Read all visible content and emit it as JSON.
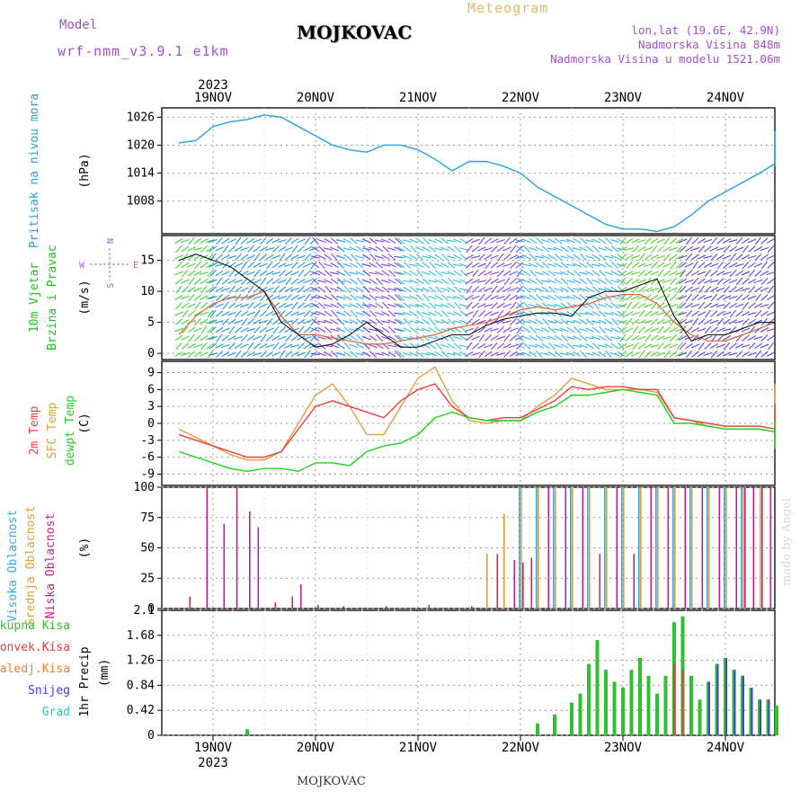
{
  "header": {
    "model_label": "Model",
    "model_name": "wrf-nmm_v3.9.1 e1km",
    "title": "MOJKOVAC",
    "subtitle": "Meteogram",
    "coords": "lon,lat (19.6E, 42.9N)",
    "elevation": "Nadmorska Visina 848m",
    "model_elevation": "Nadmorska Visina u modelu 1521.06m"
  },
  "footer_label": "MOJKOVAC",
  "credit": "made by Angel",
  "axis": {
    "year_top": "2023",
    "year_bottom": "2023",
    "dates": [
      "19NOV",
      "20NOV",
      "21NOV",
      "22NOV",
      "23NOV",
      "24NOV"
    ],
    "hours_per_day": 24
  },
  "colors": {
    "pressure": "#2aa0e0",
    "wind_green": "#20c020",
    "temp_red": "#e84040",
    "temp_orange": "#e0a040",
    "dewpoint_green": "#20d020",
    "cloud_high": "#30a8f0",
    "cloud_mid": "#e0a030",
    "cloud_low": "#c0208a",
    "rain_total": "#30c030",
    "rain_conv": "#e04040",
    "rain_frozen": "#f08030",
    "snow": "#4040e0",
    "graupel": "#30c0c0"
  },
  "chart_data": [
    {
      "type": "line",
      "panel": "pressure",
      "ylabel": "Pritisak na nivou mora",
      "unit": "(hPa)",
      "yticks": [
        1008,
        1014,
        1020,
        1026
      ],
      "ylim": [
        1001,
        1028
      ],
      "x_start_hour": -8,
      "series": [
        {
          "name": "",
          "x": [
            -8,
            -4,
            0,
            4,
            8,
            12,
            16,
            20,
            24,
            28,
            32,
            36,
            40,
            44,
            48,
            52,
            56,
            60,
            64,
            68,
            72,
            76,
            80,
            84,
            88,
            92,
            96,
            100,
            104,
            108,
            112,
            116,
            120,
            124,
            128,
            132,
            136,
            140,
            144,
            148,
            152,
            156,
            160,
            164,
            168,
            172,
            176,
            180,
            184,
            188,
            192
          ],
          "values": [
            1020.5,
            1021,
            1024,
            1025,
            1025.5,
            1026.5,
            1026,
            1024,
            1022,
            1020,
            1019,
            1018.5,
            1020,
            1020,
            1019,
            1017,
            1014.5,
            1016.5,
            1016.5,
            1015.5,
            1014,
            1011,
            1009,
            1007,
            1005,
            1003,
            1002,
            1002,
            1001.5,
            1002.5,
            1005,
            1008,
            1010,
            1012,
            1014,
            1016,
            1020,
            1022.5,
            1022.5,
            1022,
            1023,
            1021,
            1021,
            1021,
            1021,
            1020,
            1020,
            1019.5,
            1019,
            1017,
            1015.5
          ]
        }
      ]
    },
    {
      "type": "line",
      "panel": "wind",
      "ylabel": "10m Vjetar",
      "ylabel2": "Brzina i Pravac",
      "unit": "(m/s)",
      "compass": [
        "N",
        "W",
        "E",
        "S"
      ],
      "yticks": [
        0,
        5,
        10,
        15
      ],
      "ylim": [
        -1,
        19
      ],
      "series": [
        {
          "name": "",
          "x": [
            -8,
            -4,
            0,
            4,
            8,
            12,
            16,
            20,
            24,
            28,
            32,
            36,
            40,
            44,
            48,
            52,
            56,
            60,
            64,
            68,
            72,
            76,
            80,
            84,
            88,
            92,
            96,
            100,
            104,
            108,
            112,
            116,
            120,
            124,
            128,
            132,
            136,
            140,
            144,
            148,
            152,
            156,
            160,
            164,
            168,
            172,
            176,
            180,
            184,
            188,
            192
          ],
          "values": [
            3,
            6,
            8,
            9,
            9,
            10,
            6,
            3,
            3,
            2.5,
            2,
            1.5,
            1.5,
            2,
            2.5,
            3,
            4,
            4.5,
            5,
            6,
            7,
            7.5,
            7,
            7.5,
            8,
            9,
            9.5,
            9.5,
            8,
            5,
            3,
            2,
            2,
            3,
            4,
            5,
            5.5,
            6,
            6.5,
            6,
            5,
            4,
            3,
            3,
            3,
            3,
            3,
            3.5,
            4,
            4,
            3.5
          ]
        },
        {
          "name": "",
          "x": [
            -8,
            -4,
            0,
            4,
            8,
            12,
            16,
            20,
            24,
            28,
            32,
            36,
            40,
            44,
            48,
            52,
            56,
            60,
            64,
            68,
            72,
            76,
            80,
            84,
            88,
            92,
            96,
            100,
            104,
            108,
            112,
            116,
            120,
            124,
            128,
            132,
            136,
            140,
            144,
            148,
            152,
            156,
            160,
            164,
            168,
            172,
            176,
            180,
            184,
            188,
            192
          ],
          "values": [
            15,
            16,
            15,
            14,
            12,
            10,
            5,
            3,
            1,
            1.5,
            3,
            5,
            3,
            1,
            1,
            2,
            3,
            3,
            4.5,
            5.5,
            6,
            6.5,
            6.5,
            6,
            9,
            10,
            10,
            11,
            12,
            6,
            2,
            3,
            3,
            4,
            5,
            5,
            6,
            6.5,
            7,
            6,
            5,
            4,
            3,
            2,
            3,
            3,
            3,
            3,
            3.5,
            4,
            3.5
          ]
        }
      ]
    },
    {
      "type": "line",
      "panel": "temperature",
      "ylabel_parts": [
        "2m Temp",
        "SFC Temp",
        "dewpt Temp"
      ],
      "unit": "(C)",
      "yticks": [
        -9,
        -6,
        -3,
        0,
        3,
        6,
        9
      ],
      "ylim": [
        -11,
        11
      ],
      "series": [
        {
          "name": "2m Temp",
          "x": [
            -8,
            -4,
            0,
            4,
            8,
            12,
            16,
            20,
            24,
            28,
            32,
            36,
            40,
            44,
            48,
            52,
            56,
            60,
            64,
            68,
            72,
            76,
            80,
            84,
            88,
            92,
            96,
            100,
            104,
            108,
            112,
            116,
            120,
            124,
            128,
            132,
            136,
            140,
            144,
            148,
            152,
            156,
            160,
            164,
            168,
            172,
            176,
            180,
            184,
            188,
            192
          ],
          "values": [
            -2,
            -3,
            -4,
            -5,
            -6,
            -6,
            -5,
            -1,
            3,
            4,
            3,
            2,
            1,
            4,
            6,
            7,
            3,
            1,
            0.5,
            1,
            1,
            2.5,
            4,
            6.5,
            6,
            6.5,
            6.5,
            6,
            6,
            1,
            0.5,
            0,
            -0.5,
            -0.5,
            -0.5,
            -1,
            -1.5,
            -2.5,
            -2.5,
            -1.5,
            1,
            2,
            1,
            -1,
            -1.5,
            -1.5,
            -1.5,
            -2,
            -2,
            2,
            3.5
          ]
        },
        {
          "name": "SFC Temp",
          "x": [
            -8,
            -4,
            0,
            4,
            8,
            12,
            16,
            20,
            24,
            28,
            32,
            36,
            40,
            44,
            48,
            52,
            56,
            60,
            64,
            68,
            72,
            76,
            80,
            84,
            88,
            92,
            96,
            100,
            104,
            108,
            112,
            116,
            120,
            124,
            128,
            132,
            136,
            140,
            144,
            148,
            152,
            156,
            160,
            164,
            168,
            172,
            176,
            180,
            184,
            188,
            192
          ],
          "values": [
            -1,
            -2.5,
            -4,
            -5.5,
            -6.5,
            -6.5,
            -5,
            0,
            5,
            7,
            3,
            -2,
            -2,
            3,
            8,
            10,
            4,
            0.5,
            0,
            0.5,
            0.5,
            3,
            5,
            8,
            7,
            6,
            6,
            6,
            5.5,
            1,
            0.5,
            -0.5,
            -1,
            -1,
            -1,
            -1.5,
            -2,
            -3,
            -3,
            -1,
            5,
            7,
            3,
            -1,
            -2,
            -2,
            -2,
            -2,
            -2,
            5,
            6
          ]
        },
        {
          "name": "dewpt Temp",
          "x": [
            -8,
            -4,
            0,
            4,
            8,
            12,
            16,
            20,
            24,
            28,
            32,
            36,
            40,
            44,
            48,
            52,
            56,
            60,
            64,
            68,
            72,
            76,
            80,
            84,
            88,
            92,
            96,
            100,
            104,
            108,
            112,
            116,
            120,
            124,
            128,
            132,
            136,
            140,
            144,
            148,
            152,
            156,
            160,
            164,
            168,
            172,
            176,
            180,
            184,
            188,
            192
          ],
          "values": [
            -5,
            -6,
            -7,
            -8,
            -8.5,
            -8,
            -8,
            -8.5,
            -7,
            -7,
            -7.5,
            -5,
            -4,
            -3.5,
            -2,
            1,
            2,
            1,
            0.5,
            0.5,
            0.5,
            2,
            3,
            5,
            5,
            5.5,
            6,
            5.5,
            5,
            0,
            0,
            -0.5,
            -1,
            -1,
            -1,
            -1.5,
            -2,
            -3,
            -3,
            -2,
            0,
            0.5,
            0,
            -1,
            -1.5,
            -2,
            -2,
            -2.5,
            -2.5,
            -2,
            -4.5
          ]
        }
      ]
    },
    {
      "type": "bar",
      "panel": "clouds",
      "ylabel_parts": [
        "Visoka Oblacnost",
        "Srednja Oblacnost",
        "Niska Oblacnost"
      ],
      "unit": "(%)",
      "yticks": [
        0,
        25,
        50,
        75,
        100
      ],
      "ylim": [
        0,
        100
      ],
      "low_hours": [
        -6,
        -2,
        2,
        5,
        8,
        10,
        14,
        18,
        20,
        24,
        30,
        40,
        50,
        60,
        66,
        70,
        72,
        74,
        78,
        82,
        86,
        90,
        94,
        98,
        102,
        106,
        110,
        114,
        118,
        122,
        124,
        126,
        128,
        130,
        132,
        134,
        136,
        138,
        140,
        144,
        148,
        152,
        156,
        160,
        164,
        168,
        170,
        172,
        176,
        180,
        184,
        186
      ],
      "low_values": [
        10,
        100,
        70,
        100,
        80,
        67,
        5,
        10,
        20,
        3,
        2,
        2,
        3,
        2,
        45,
        40,
        38,
        42,
        100,
        100,
        100,
        45,
        100,
        45,
        100,
        100,
        100,
        100,
        100,
        100,
        100,
        100,
        100,
        100,
        100,
        100,
        85,
        85,
        87,
        75,
        42,
        38,
        25,
        25,
        25,
        28,
        25,
        37,
        30,
        20,
        12,
        33
      ],
      "mid_hours": [
        64,
        68,
        72,
        76,
        80,
        84,
        88,
        92,
        96,
        100,
        104,
        108,
        112,
        116,
        120,
        124,
        128
      ],
      "mid_values": [
        45,
        78,
        100,
        100,
        100,
        100,
        100,
        100,
        100,
        100,
        100,
        100,
        100,
        100,
        100,
        100,
        100
      ],
      "high_hours": [
        72,
        76,
        80,
        84,
        88,
        92,
        96,
        100,
        104,
        108,
        112,
        116,
        120,
        124,
        138
      ],
      "high_values": [
        100,
        100,
        100,
        100,
        100,
        100,
        100,
        100,
        100,
        100,
        100,
        100,
        100,
        100,
        22
      ]
    },
    {
      "type": "bar",
      "panel": "precipitation",
      "ylabel_parts": [
        "Ukupna Kisa",
        "Konvek.Kisa",
        "Zaledj.Kisa",
        "Snijeg",
        "Grad"
      ],
      "ylabel": "1hr Precip",
      "unit": "(mm)",
      "yticks": [
        0,
        0.42,
        0.84,
        1.26,
        1.68,
        2.1
      ],
      "ylim": [
        0,
        2.1
      ],
      "total_hours": [
        -4,
        0,
        4,
        8,
        72,
        76,
        80,
        84,
        86,
        88,
        90,
        92,
        94,
        96,
        98,
        100,
        102,
        104,
        106,
        108,
        110,
        112,
        114,
        116,
        118,
        120,
        122,
        124,
        126,
        128,
        130,
        132,
        134,
        136,
        138,
        140,
        142,
        144,
        146
      ],
      "total_values": [
        0.02,
        0.02,
        0.02,
        0.1,
        0.02,
        0.2,
        0.35,
        0.55,
        0.7,
        1.2,
        1.6,
        1.1,
        0.9,
        0.8,
        1.1,
        1.3,
        1.0,
        0.7,
        1.0,
        1.9,
        2.0,
        1.0,
        0.6,
        0.9,
        1.2,
        1.3,
        1.1,
        1.0,
        0.8,
        0.6,
        0.6,
        0.5,
        0.7,
        1.2,
        1.3,
        0.4,
        0.1,
        0.05,
        0.02
      ],
      "conv_hours": [
        108,
        110
      ],
      "conv_values": [
        1.2,
        1.1
      ],
      "snow_hours": [
        116,
        118,
        120,
        122,
        124,
        126,
        128,
        130,
        132,
        134,
        136,
        138,
        140
      ],
      "snow_values": [
        0.9,
        1.2,
        1.3,
        1.1,
        1.0,
        0.8,
        0.6,
        0.6,
        0.5,
        0.7,
        1.2,
        1.3,
        0.4
      ]
    }
  ]
}
